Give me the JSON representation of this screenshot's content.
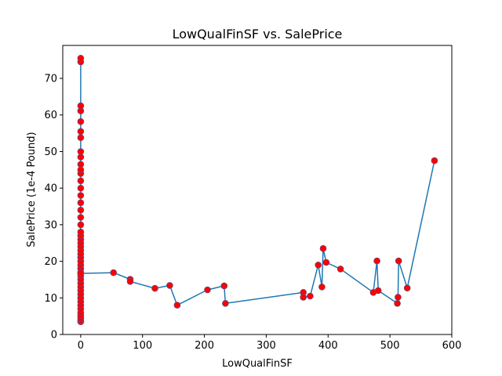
{
  "chart_data": {
    "type": "scatter",
    "title": "LowQualFinSF vs. SalePrice",
    "xlabel": "LowQualFinSF",
    "ylabel": "SalePrice (1e-4 Pound)",
    "xlim": [
      -29,
      600
    ],
    "ylim": [
      0,
      79
    ],
    "xticks": [
      0,
      100,
      200,
      300,
      400,
      500,
      600
    ],
    "yticks": [
      0,
      10,
      20,
      30,
      40,
      50,
      60,
      70
    ],
    "grid": false,
    "line_color": "#1f77b4",
    "marker_color": "#ff0000",
    "marker_edge_color": "#4a5a9a",
    "series": [
      {
        "x": [
          0,
          0,
          0,
          0,
          0,
          0,
          0,
          0,
          0,
          0,
          0,
          0,
          0,
          0,
          0,
          0,
          0,
          0,
          0,
          0,
          0,
          0,
          0,
          0,
          0,
          0,
          0,
          0,
          0,
          0,
          0,
          0,
          0,
          0,
          0,
          0,
          0,
          0,
          0,
          0,
          0,
          0,
          0,
          0,
          0,
          0,
          0,
          0,
          53,
          80,
          80,
          120,
          144,
          156,
          205,
          232,
          234,
          360,
          360,
          371,
          384,
          390,
          392,
          397,
          420,
          473,
          479,
          481,
          512,
          513,
          514,
          528,
          572
        ],
        "y": [
          3.5,
          3.9,
          4.5,
          5.2,
          6.0,
          7.0,
          8.0,
          9.0,
          10.0,
          11.0,
          12.0,
          13.0,
          14.0,
          15.0,
          16.0,
          17.0,
          18.0,
          19.0,
          20.0,
          21.0,
          22.0,
          23.0,
          24.0,
          25.0,
          26.0,
          27.0,
          28.0,
          30.0,
          32.0,
          34.0,
          36.0,
          38.0,
          40.0,
          42.0,
          44.0,
          45.0,
          46.5,
          48.5,
          50.0,
          53.8,
          55.5,
          58.2,
          61.1,
          62.5,
          74.5,
          75.5,
          16.7,
          16.7,
          16.9,
          15.1,
          14.5,
          12.6,
          13.4,
          8.0,
          12.2,
          13.3,
          8.5,
          11.5,
          10.2,
          10.5,
          19.0,
          13.0,
          23.5,
          19.7,
          17.9,
          11.5,
          20.1,
          12.0,
          8.5,
          10.2,
          20.1,
          12.7,
          47.5
        ]
      }
    ]
  }
}
